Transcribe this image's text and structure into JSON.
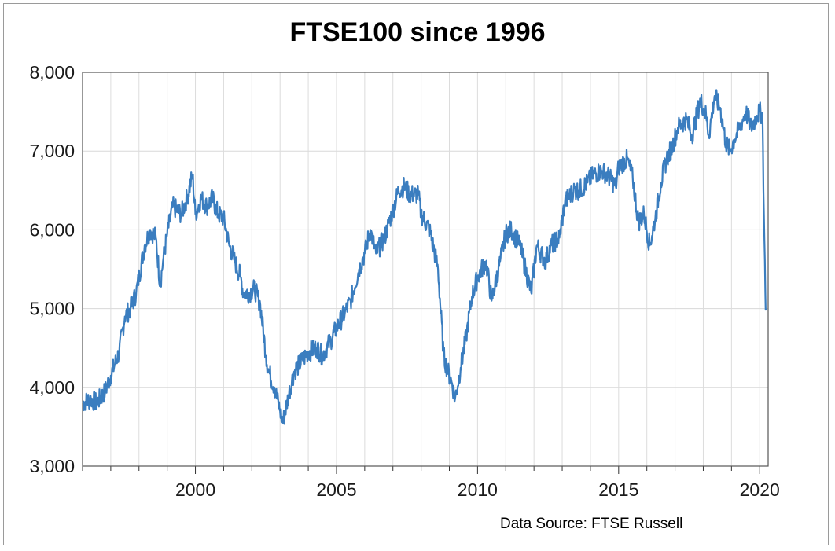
{
  "chart_data": {
    "type": "line",
    "title": "FTSE100 since 1996",
    "source_note": "Data Source: FTSE Russell",
    "xlabel": "",
    "ylabel": "",
    "xlim": [
      1996.0,
      2020.3
    ],
    "ylim": [
      3000,
      8000
    ],
    "x_ticks": [
      2000,
      2005,
      2010,
      2015,
      2020
    ],
    "x_tick_labels": [
      "2000",
      "2005",
      "2010",
      "2015",
      "2020"
    ],
    "y_ticks": [
      3000,
      4000,
      5000,
      6000,
      7000,
      8000
    ],
    "y_tick_labels": [
      "3,000",
      "4,000",
      "5,000",
      "6,000",
      "7,000",
      "8,000"
    ],
    "grid": true,
    "line_color": "#3a7dbf",
    "series": [
      {
        "x": [
          1996.0,
          1996.3,
          1996.5,
          1996.8,
          1997.0,
          1997.3,
          1997.5,
          1997.7,
          1997.9,
          1998.2,
          1998.4,
          1998.6,
          1998.75,
          1998.85,
          1999.0,
          1999.2,
          1999.5,
          1999.7,
          1999.9,
          2000.0,
          2000.2,
          2000.4,
          2000.6,
          2000.8,
          2001.0,
          2001.2,
          2001.4,
          2001.6,
          2001.7,
          2001.9,
          2002.1,
          2002.3,
          2002.5,
          2002.6,
          2002.8,
          2003.0,
          2003.1,
          2003.3,
          2003.5,
          2003.8,
          2004.0,
          2004.3,
          2004.5,
          2004.8,
          2005.0,
          2005.3,
          2005.5,
          2005.8,
          2006.0,
          2006.2,
          2006.4,
          2006.7,
          2007.0,
          2007.2,
          2007.4,
          2007.6,
          2007.9,
          2008.0,
          2008.3,
          2008.6,
          2008.8,
          2008.95,
          2009.1,
          2009.2,
          2009.4,
          2009.6,
          2009.8,
          2010.0,
          2010.3,
          2010.5,
          2010.8,
          2011.0,
          2011.2,
          2011.5,
          2011.7,
          2011.9,
          2012.1,
          2012.4,
          2012.6,
          2012.9,
          2013.1,
          2013.4,
          2013.6,
          2013.9,
          2014.1,
          2014.4,
          2014.6,
          2014.9,
          2015.0,
          2015.3,
          2015.5,
          2015.7,
          2015.9,
          2016.1,
          2016.3,
          2016.5,
          2016.7,
          2016.9,
          2017.1,
          2017.4,
          2017.6,
          2017.9,
          2018.1,
          2018.2,
          2018.4,
          2018.6,
          2018.8,
          2018.95,
          2019.1,
          2019.3,
          2019.5,
          2019.7,
          2019.9,
          2020.0,
          2020.1,
          2020.15,
          2020.2,
          2020.22
        ],
        "y": [
          3800,
          3850,
          3800,
          3950,
          4150,
          4450,
          4900,
          5000,
          5200,
          5800,
          6000,
          5900,
          5300,
          5600,
          5950,
          6300,
          6200,
          6400,
          6700,
          6200,
          6400,
          6300,
          6400,
          6200,
          6150,
          5800,
          5600,
          5400,
          5200,
          5200,
          5250,
          5050,
          4400,
          4200,
          4000,
          3700,
          3550,
          3900,
          4200,
          4350,
          4450,
          4500,
          4400,
          4600,
          4750,
          4950,
          5100,
          5500,
          5700,
          6000,
          5700,
          5900,
          6250,
          6500,
          6550,
          6450,
          6450,
          6200,
          6000,
          5500,
          4400,
          4200,
          4050,
          3850,
          4250,
          4650,
          5150,
          5400,
          5600,
          5100,
          5600,
          5950,
          6000,
          5800,
          5500,
          5200,
          5800,
          5600,
          5800,
          5900,
          6350,
          6500,
          6500,
          6600,
          6700,
          6750,
          6700,
          6550,
          6800,
          6900,
          6650,
          6100,
          6200,
          5800,
          6150,
          6600,
          6900,
          7050,
          7300,
          7400,
          7200,
          7650,
          7450,
          7200,
          7700,
          7550,
          7100,
          7000,
          7150,
          7300,
          7500,
          7300,
          7450,
          7500,
          7450,
          6200,
          5200,
          5000
        ],
        "name": ""
      }
    ]
  }
}
